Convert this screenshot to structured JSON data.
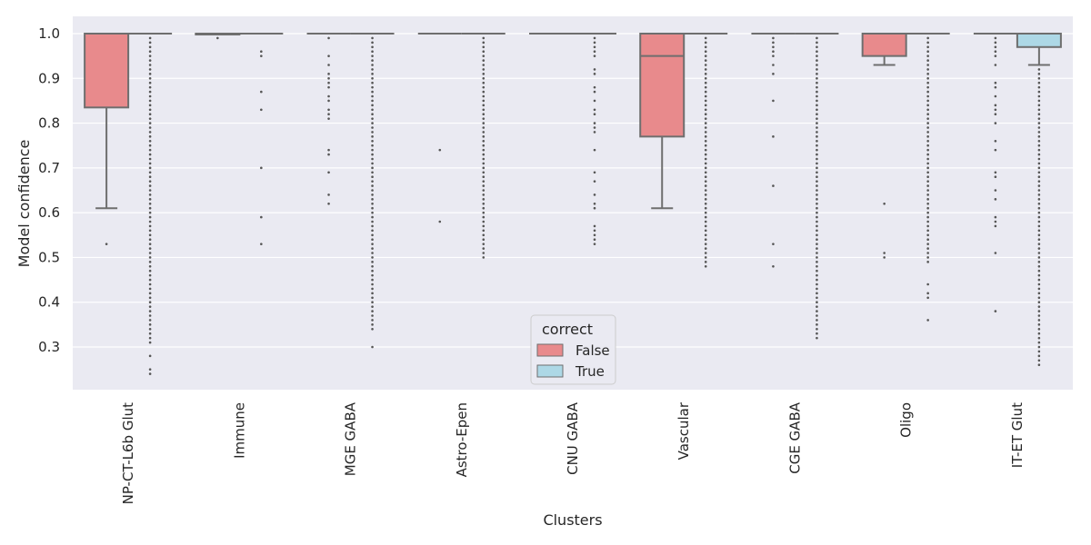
{
  "chart_data": {
    "type": "box",
    "title": "",
    "xlabel": "Clusters",
    "ylabel": "Model confidence",
    "ylim": [
      0.2,
      1.04
    ],
    "yticks": [
      "1.0",
      "0.9",
      "0.8",
      "0.7",
      "0.6",
      "0.5",
      "0.4",
      "0.3"
    ],
    "categories": [
      "NP-CT-L6b Glut",
      "Immune",
      "MGE GABA",
      "Astro-Epen",
      "CNU GABA",
      "Vascular",
      "CGE GABA",
      "Oligo",
      "IT-ET Glut"
    ],
    "grid": true,
    "legend": {
      "title": "correct",
      "position": "lower-center",
      "entries": [
        "False",
        "True"
      ]
    },
    "colors": {
      "False": "#e88a8c",
      "True": "#add8e6",
      "background": "#eaeaf2",
      "box_edge": "#6e6e6e"
    },
    "series": [
      {
        "name": "False",
        "boxes": [
          {
            "q1": 0.835,
            "median": 1.0,
            "q3": 1.0,
            "whislo": 0.61,
            "whishi": 1.0,
            "fliers": [
              0.53
            ]
          },
          {
            "q1": 0.998,
            "median": 1.0,
            "q3": 1.0,
            "whislo": 0.998,
            "whishi": 1.0,
            "fliers": [
              0.99
            ]
          },
          {
            "q1": 1.0,
            "median": 1.0,
            "q3": 1.0,
            "whislo": 1.0,
            "whishi": 1.0,
            "fliers": [
              0.99,
              0.95,
              0.93,
              0.91,
              0.9,
              0.89,
              0.88,
              0.86,
              0.85,
              0.83,
              0.82,
              0.81,
              0.74,
              0.73,
              0.69,
              0.64,
              0.62
            ]
          },
          {
            "q1": 1.0,
            "median": 1.0,
            "q3": 1.0,
            "whislo": 1.0,
            "whishi": 1.0,
            "fliers": [
              0.74,
              0.58
            ]
          },
          {
            "q1": 1.0,
            "median": 1.0,
            "q3": 1.0,
            "whislo": 1.0,
            "whishi": 1.0,
            "fliers": []
          },
          {
            "q1": 0.77,
            "median": 0.95,
            "q3": 1.0,
            "whislo": 0.61,
            "whishi": 1.0,
            "fliers": []
          },
          {
            "q1": 1.0,
            "median": 1.0,
            "q3": 1.0,
            "whislo": 1.0,
            "whishi": 1.0,
            "fliers": [
              0.99,
              0.98,
              0.97,
              0.96,
              0.95,
              0.93,
              0.91,
              0.85,
              0.77,
              0.66,
              0.53,
              0.48
            ]
          },
          {
            "q1": 0.95,
            "median": 1.0,
            "q3": 1.0,
            "whislo": 0.93,
            "whishi": 1.0,
            "fliers": [
              0.62,
              0.51,
              0.5
            ]
          },
          {
            "q1": 1.0,
            "median": 1.0,
            "q3": 1.0,
            "whislo": 1.0,
            "whishi": 1.0,
            "fliers": [
              0.99,
              0.98,
              0.97,
              0.96,
              0.95,
              0.93,
              0.89,
              0.88,
              0.86,
              0.84,
              0.83,
              0.82,
              0.8,
              0.76,
              0.74,
              0.69,
              0.68,
              0.65,
              0.63,
              0.59,
              0.58,
              0.57,
              0.51,
              0.38
            ]
          }
        ]
      },
      {
        "name": "True",
        "boxes": [
          {
            "q1": 1.0,
            "median": 1.0,
            "q3": 1.0,
            "whislo": 1.0,
            "whishi": 1.0,
            "flier_range": [
              0.31,
              0.99
            ],
            "fliers": [
              0.28,
              0.25,
              0.24
            ]
          },
          {
            "q1": 1.0,
            "median": 1.0,
            "q3": 1.0,
            "whislo": 1.0,
            "whishi": 1.0,
            "fliers": [
              0.96,
              0.95,
              0.87,
              0.83,
              0.7,
              0.59,
              0.53
            ]
          },
          {
            "q1": 1.0,
            "median": 1.0,
            "q3": 1.0,
            "whislo": 1.0,
            "whishi": 1.0,
            "flier_range": [
              0.36,
              0.99
            ],
            "fliers": [
              0.35,
              0.34,
              0.3
            ]
          },
          {
            "q1": 1.0,
            "median": 1.0,
            "q3": 1.0,
            "whislo": 1.0,
            "whishi": 1.0,
            "flier_range": [
              0.5,
              0.99
            ],
            "fliers": []
          },
          {
            "q1": 1.0,
            "median": 1.0,
            "q3": 1.0,
            "whislo": 1.0,
            "whishi": 1.0,
            "fliers": [
              0.99,
              0.98,
              0.97,
              0.96,
              0.95,
              0.92,
              0.91,
              0.88,
              0.87,
              0.85,
              0.83,
              0.82,
              0.8,
              0.79,
              0.78,
              0.74,
              0.69,
              0.67,
              0.64,
              0.62,
              0.61,
              0.57,
              0.56,
              0.55,
              0.54,
              0.53
            ]
          },
          {
            "q1": 1.0,
            "median": 1.0,
            "q3": 1.0,
            "whislo": 1.0,
            "whishi": 1.0,
            "flier_range": [
              0.49,
              0.99
            ],
            "fliers": [
              0.48
            ]
          },
          {
            "q1": 1.0,
            "median": 1.0,
            "q3": 1.0,
            "whislo": 1.0,
            "whishi": 1.0,
            "flier_range": [
              0.36,
              0.99
            ],
            "fliers": [
              0.35,
              0.34,
              0.33,
              0.32
            ]
          },
          {
            "q1": 1.0,
            "median": 1.0,
            "q3": 1.0,
            "whislo": 1.0,
            "whishi": 1.0,
            "flier_range": [
              0.49,
              0.99
            ],
            "fliers": [
              0.44,
              0.42,
              0.41,
              0.36
            ]
          },
          {
            "q1": 0.97,
            "median": 1.0,
            "q3": 1.0,
            "whislo": 0.93,
            "whishi": 1.0,
            "flier_range": [
              0.26,
              0.92
            ],
            "fliers": []
          }
        ]
      }
    ]
  }
}
